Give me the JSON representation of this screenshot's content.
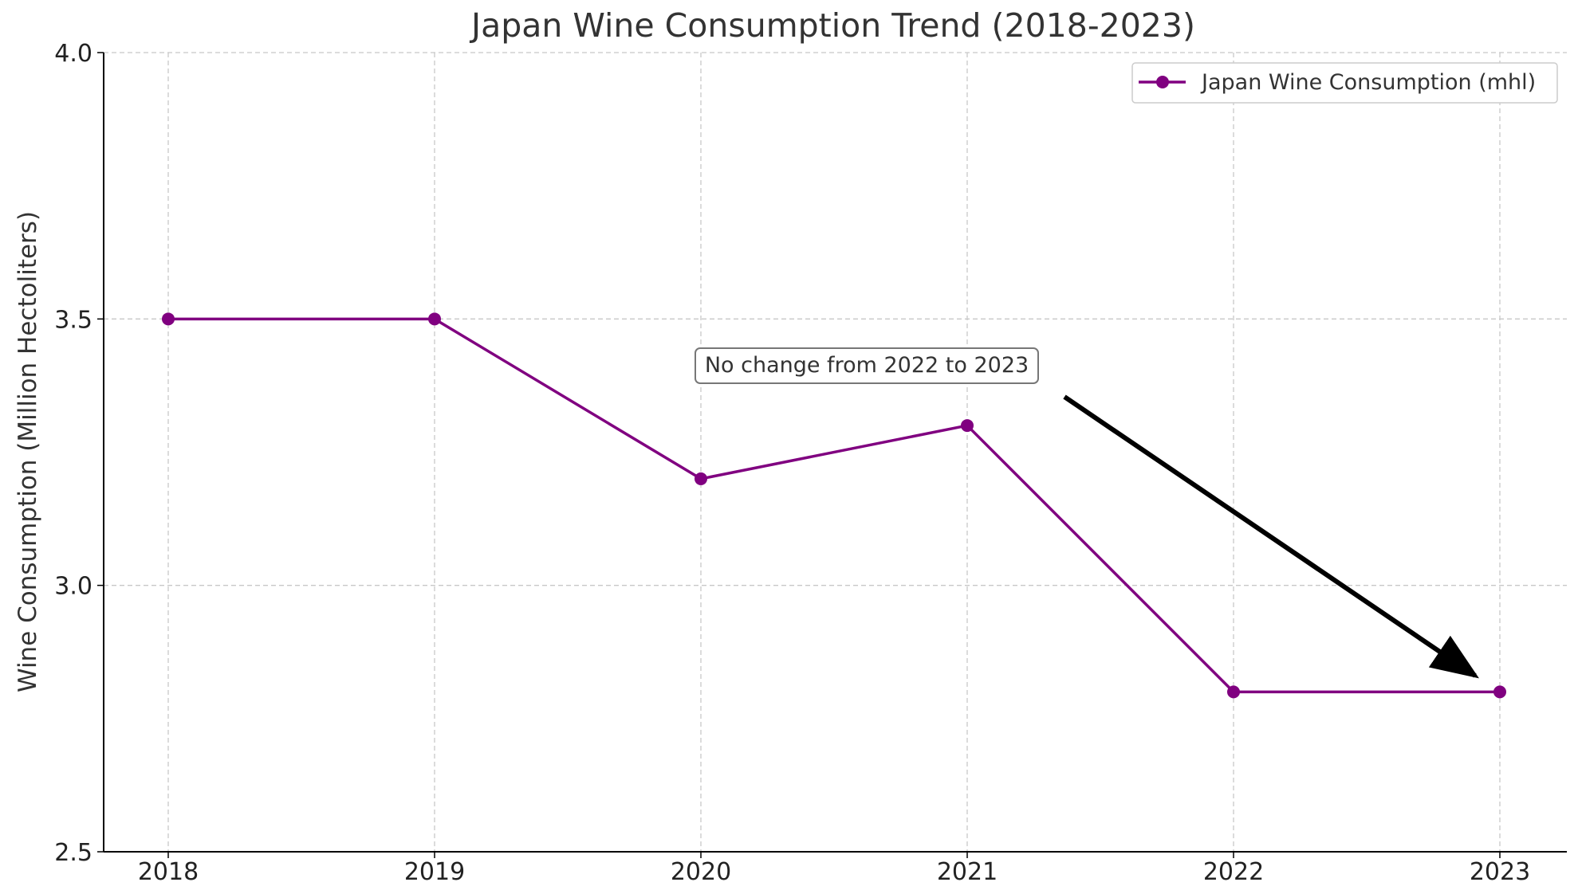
{
  "chart_data": {
    "type": "line",
    "title": "Japan Wine Consumption Trend (2018-2023)",
    "xlabel": "",
    "ylabel": "Wine Consumption (Million Hectoliters)",
    "x": [
      "2018",
      "2019",
      "2020",
      "2021",
      "2022",
      "2023"
    ],
    "series": [
      {
        "name": "Japan Wine Consumption (mhl)",
        "values": [
          3.5,
          3.5,
          3.2,
          3.3,
          2.8,
          2.8
        ],
        "color": "#800080"
      }
    ],
    "ylim": [
      2.5,
      4.0
    ],
    "yticks": [
      "2.5",
      "3.0",
      "3.5",
      "4.0"
    ],
    "grid": true,
    "legend_position": "top-right",
    "annotation": {
      "text": "No change from 2022 to 2023",
      "arrow_color": "#000000"
    }
  }
}
